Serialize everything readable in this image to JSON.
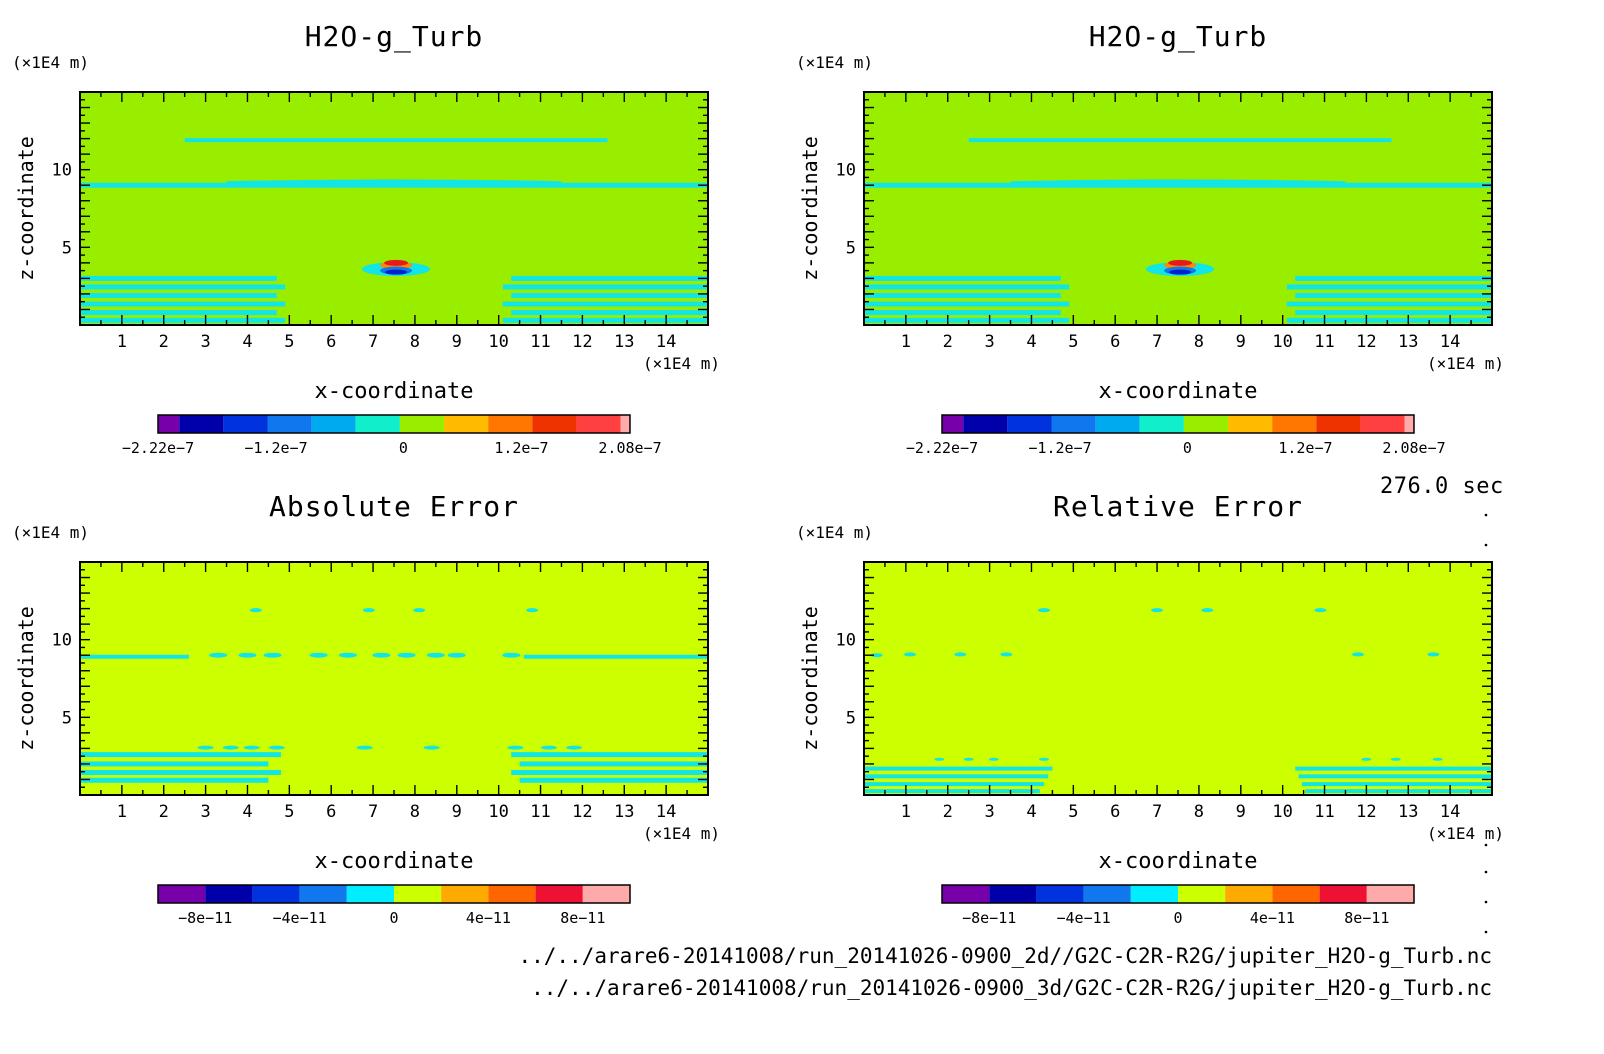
{
  "colors": {
    "background": "#ffffff",
    "field": "#99ee00",
    "contour": "#11e5e5",
    "pos_a": "#e51a1a",
    "pos_b": "#ff8800",
    "neg_a": "#0022cc",
    "neg_b": "#1177ee",
    "error_field": "#ccff00"
  },
  "time_label": "276.0 sec",
  "files": [
    "../../arare6-20141008/run_20141026-0900_2d//G2C-C2R-R2G/jupiter_H2O-g_Turb.nc",
    "../../arare6-20141008/run_20141026-0900_3d/G2C-C2R-R2G/jupiter_H2O-g_Turb.nc"
  ],
  "chart_data": [
    {
      "type": "heatmap",
      "title": "H2O-g_Turb",
      "xlabel": "x-coordinate",
      "ylabel": "z-coordinate",
      "x_unit": "(×1E4 m)",
      "y_unit": "(×1E4 m)",
      "xlim": [
        0,
        15
      ],
      "ylim": [
        0,
        15
      ],
      "x_ticks": [
        1,
        2,
        3,
        4,
        5,
        6,
        7,
        8,
        9,
        10,
        11,
        12,
        13,
        14
      ],
      "y_ticks": [
        5,
        10
      ],
      "colorbar": {
        "colors": [
          "#7700aa",
          "#0000aa",
          "#0033dd",
          "#1177ee",
          "#00aaee",
          "#11eecc",
          "#99ee00",
          "#ffbb00",
          "#ff7700",
          "#ee3300",
          "#ff4040",
          "#ffaaaa"
        ],
        "tick_labels": [
          "−2.22e−7",
          "−1.2e−7",
          "0",
          "1.2e−7",
          "2.08e−7"
        ],
        "tick_positions": [
          0,
          0.25,
          0.52,
          0.77,
          1.0
        ]
      }
    },
    {
      "type": "heatmap",
      "title": "H2O-g_Turb",
      "xlabel": "x-coordinate",
      "ylabel": "z-coordinate",
      "x_unit": "(×1E4 m)",
      "y_unit": "(×1E4 m)",
      "xlim": [
        0,
        15
      ],
      "ylim": [
        0,
        15
      ],
      "x_ticks": [
        1,
        2,
        3,
        4,
        5,
        6,
        7,
        8,
        9,
        10,
        11,
        12,
        13,
        14
      ],
      "y_ticks": [
        5,
        10
      ],
      "colorbar": {
        "colors": [
          "#7700aa",
          "#0000aa",
          "#0033dd",
          "#1177ee",
          "#00aaee",
          "#11eecc",
          "#99ee00",
          "#ffbb00",
          "#ff7700",
          "#ee3300",
          "#ff4040",
          "#ffaaaa"
        ],
        "tick_labels": [
          "−2.22e−7",
          "−1.2e−7",
          "0",
          "1.2e−7",
          "2.08e−7"
        ],
        "tick_positions": [
          0,
          0.25,
          0.52,
          0.77,
          1.0
        ]
      }
    },
    {
      "type": "heatmap",
      "title": "Absolute Error",
      "xlabel": "x-coordinate",
      "ylabel": "z-coordinate",
      "x_unit": "(×1E4 m)",
      "y_unit": "(×1E4 m)",
      "xlim": [
        0,
        15
      ],
      "ylim": [
        0,
        15
      ],
      "x_ticks": [
        1,
        2,
        3,
        4,
        5,
        6,
        7,
        8,
        9,
        10,
        11,
        12,
        13,
        14
      ],
      "y_ticks": [
        5,
        10
      ],
      "colorbar": {
        "colors": [
          "#7700aa",
          "#0000aa",
          "#0033dd",
          "#1177ee",
          "#00eeff",
          "#ccff00",
          "#ffaa00",
          "#ff6600",
          "#ee1133",
          "#ffaaaa"
        ],
        "tick_labels": [
          "−8e−11",
          "−4e−11",
          "0",
          "4e−11",
          "8e−11"
        ],
        "tick_positions": [
          0.1,
          0.3,
          0.5,
          0.7,
          0.9
        ]
      }
    },
    {
      "type": "heatmap",
      "title": "Relative Error",
      "xlabel": "x-coordinate",
      "ylabel": "z-coordinate",
      "x_unit": "(×1E4 m)",
      "y_unit": "(×1E4 m)",
      "xlim": [
        0,
        15
      ],
      "ylim": [
        0,
        15
      ],
      "x_ticks": [
        1,
        2,
        3,
        4,
        5,
        6,
        7,
        8,
        9,
        10,
        11,
        12,
        13,
        14
      ],
      "y_ticks": [
        5,
        10
      ],
      "colorbar": {
        "colors": [
          "#7700aa",
          "#0000aa",
          "#0033dd",
          "#1177ee",
          "#00eeff",
          "#ccff00",
          "#ffaa00",
          "#ff6600",
          "#ee1133",
          "#ffaaaa"
        ],
        "tick_labels": [
          "−8e−11",
          "−4e−11",
          "0",
          "4e−11",
          "8e−11"
        ],
        "tick_positions": [
          0.1,
          0.3,
          0.5,
          0.7,
          0.9
        ]
      }
    }
  ]
}
